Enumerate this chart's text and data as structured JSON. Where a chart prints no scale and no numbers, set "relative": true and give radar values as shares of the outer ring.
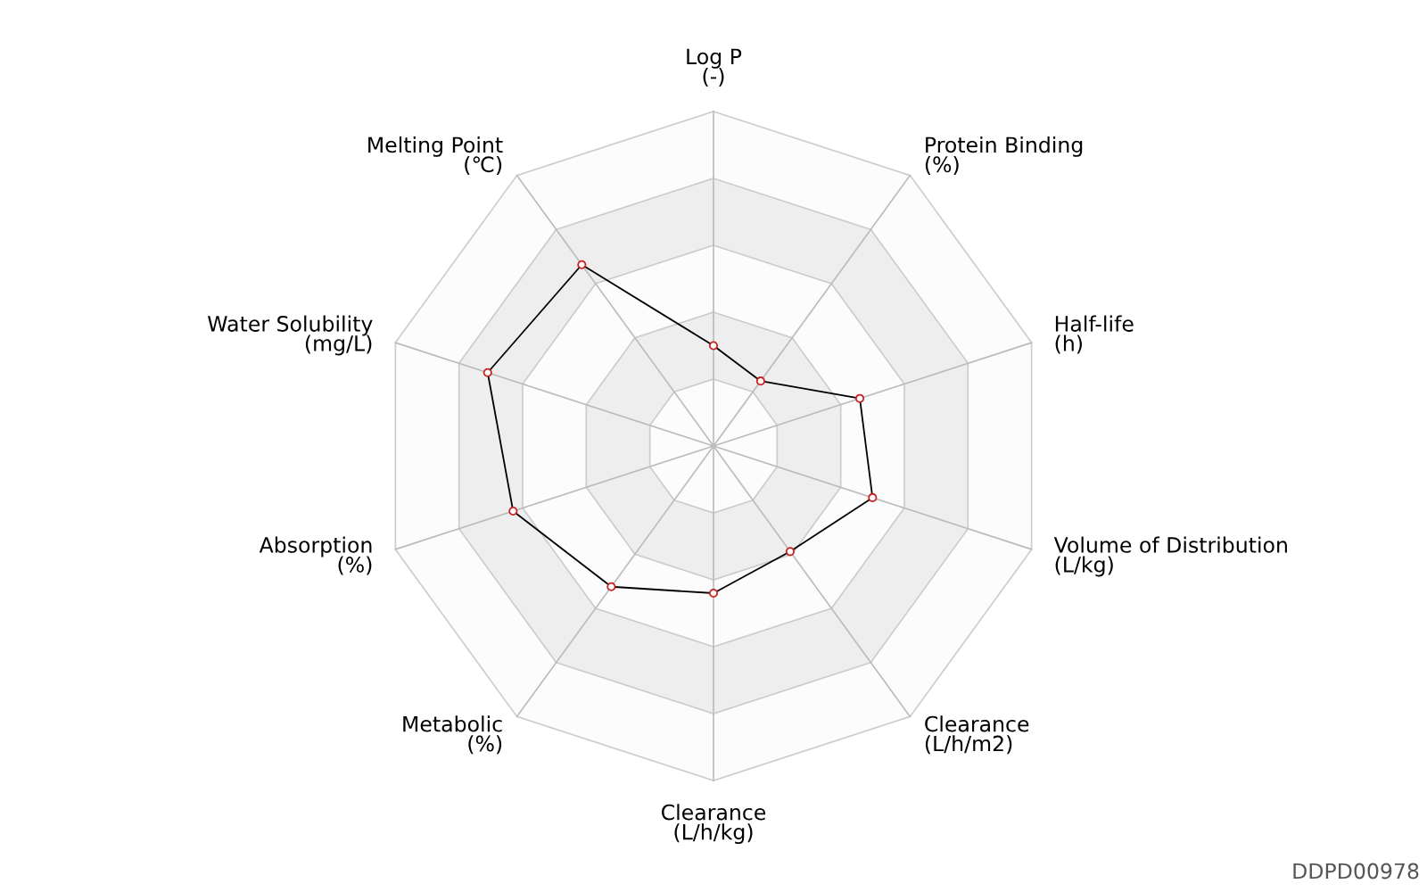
{
  "chart_data": {
    "type": "radar",
    "relative": true,
    "grid": true,
    "marker": "circle",
    "line_style": "solid",
    "categories": [
      "Log P\n(-)",
      "Protein Binding\n(%)",
      "Half-life\n(h)",
      "Volume of Distribution\n(L/kg)",
      "Clearance\n(L/h/m2)",
      "Clearance\n(L/h/kg)",
      "Metabolic\n(%)",
      "Absorption\n(%)",
      "Water Solubility\n(mg/L)",
      "Melting Point\n(℃)"
    ],
    "series": [
      {
        "color": "#000000",
        "values": [
          0.3,
          0.24,
          0.46,
          0.5,
          0.39,
          0.44,
          0.52,
          0.63,
          0.71,
          0.67
        ]
      }
    ],
    "annotations": [
      "DDPD00978"
    ]
  }
}
